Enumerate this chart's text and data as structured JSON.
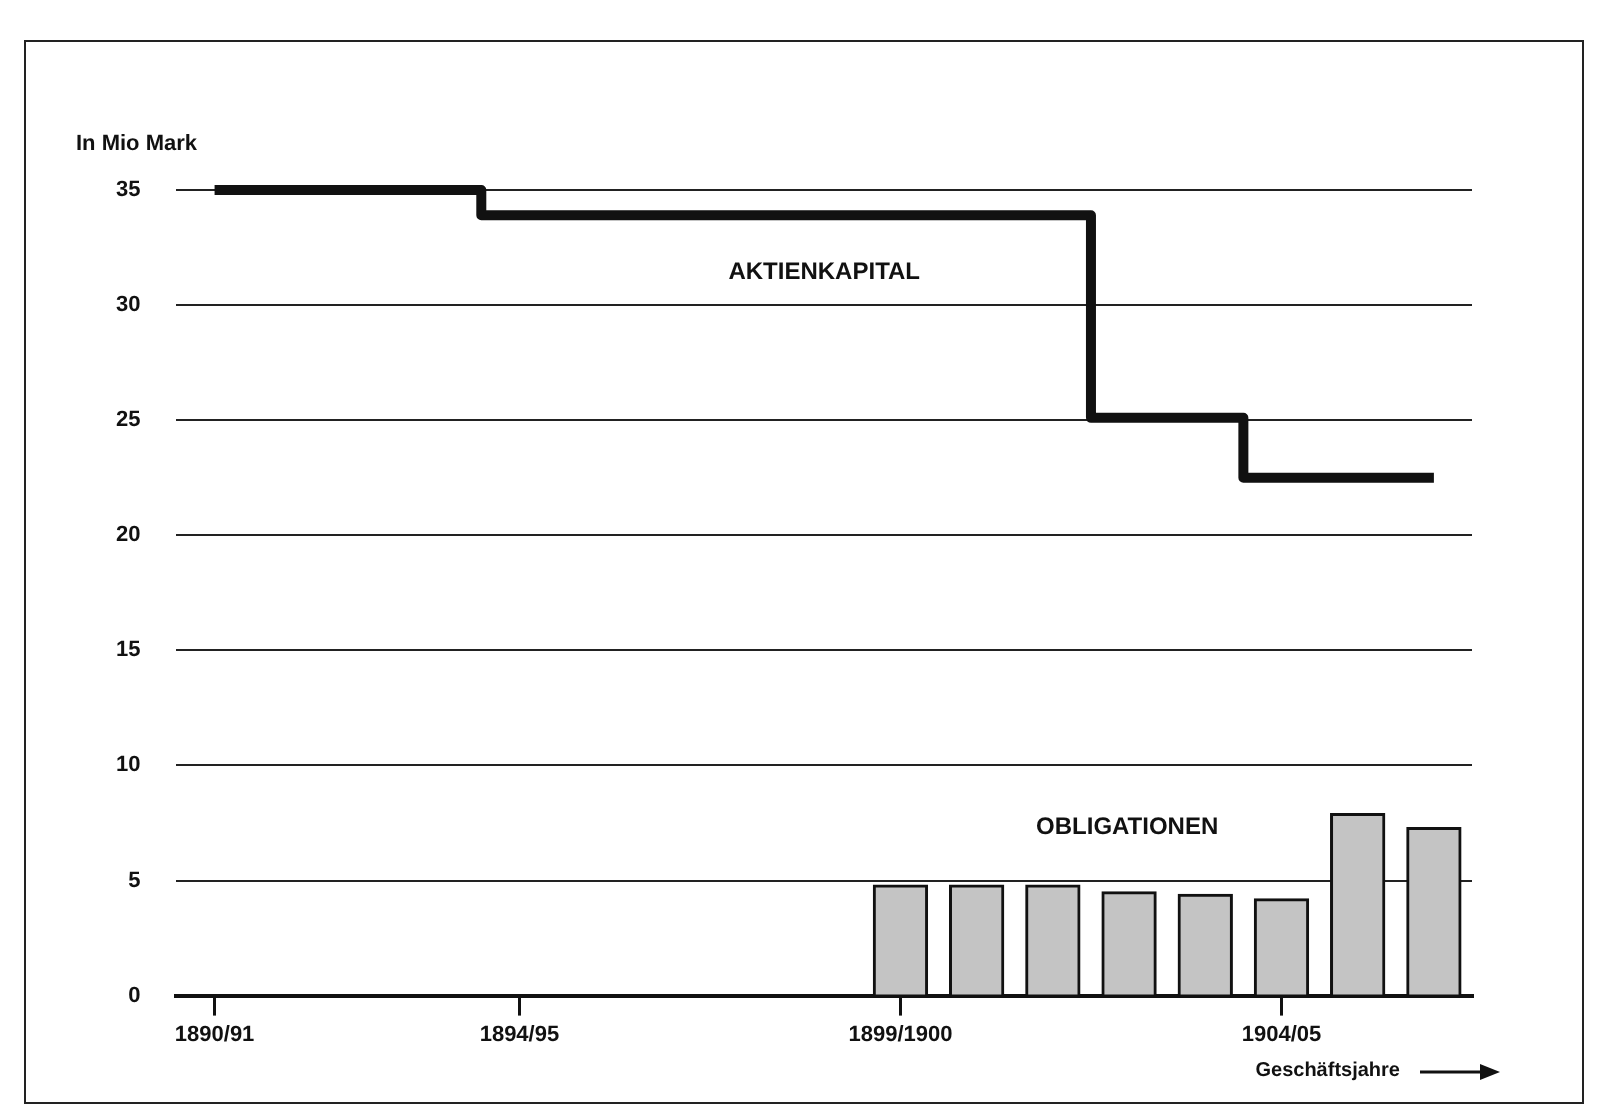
{
  "chart_data": {
    "type": "bar",
    "ylabel": "In Mio Mark",
    "xlabel": "Geschäftsjahre",
    "categories": [
      "1890/91",
      null,
      null,
      null,
      "1894/95",
      null,
      null,
      null,
      null,
      "1899/1900",
      null,
      null,
      null,
      null,
      "1904/05",
      null,
      null
    ],
    "ylim": [
      0,
      35
    ],
    "yticks": [
      0,
      5,
      10,
      15,
      20,
      25,
      30,
      35
    ],
    "grid": "y",
    "legend": false,
    "series": [
      {
        "name": "AKTIENKAPITAL",
        "type": "step",
        "color": "#111111",
        "values": [
          35,
          35,
          35,
          35,
          33.9,
          33.9,
          33.9,
          33.9,
          33.9,
          33.9,
          33.9,
          33.9,
          25.1,
          25.1,
          22.5,
          22.5,
          22.5
        ]
      },
      {
        "name": "OBLIGATIONEN",
        "color": "#c4c4c4",
        "values": [
          null,
          null,
          null,
          null,
          null,
          null,
          null,
          null,
          null,
          4.8,
          4.8,
          4.8,
          4.5,
          4.4,
          4.2,
          7.9,
          7.3
        ]
      }
    ]
  }
}
